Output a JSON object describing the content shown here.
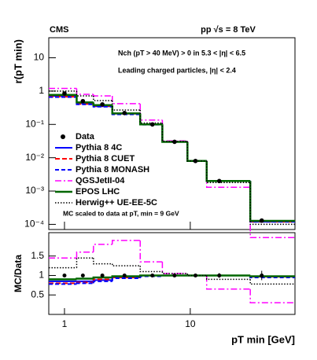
{
  "chart_data": {
    "type": "step",
    "experiment": "CMS",
    "energy": "pp √s = 8 TeV",
    "selection": "Nch (pT > 40 MeV) > 0 in 5.3 < |η| < 6.5",
    "particles": "Leading charged particles, |η| < 2.4",
    "note": "MC scaled to data at pT, min = 9 GeV",
    "xlabel": "pT min [GeV]",
    "xlim": [
      0.75,
      68
    ],
    "xticks": [
      1,
      10
    ],
    "log_x": true,
    "edges": [
      0.75,
      1.25,
      1.7,
      2.4,
      4,
      6,
      9.5,
      13.5,
      30,
      68
    ],
    "top": {
      "ylabel": "r(pT min)",
      "ylim": [
        7e-05,
        40
      ],
      "log_y": true,
      "yticks": [
        {
          "value": 0.0001,
          "label": "10⁻⁴"
        },
        {
          "value": 0.001,
          "label": "10⁻³"
        },
        {
          "value": 0.01,
          "label": "10⁻²"
        },
        {
          "value": 0.1,
          "label": "10⁻¹"
        },
        1,
        10
      ]
    },
    "ratio": {
      "ylabel": "MC/Data",
      "ylim": [
        0,
        2.1
      ],
      "yticks": [
        0.5,
        1,
        1.5
      ]
    },
    "data": {
      "name": "Data",
      "color": "#000000",
      "x": [
        1,
        1.4,
        2,
        3,
        5,
        7.5,
        11,
        17,
        37
      ],
      "values": [
        0.85,
        0.5,
        0.4,
        0.22,
        0.1,
        0.03,
        0.008,
        0.002,
        0.00013
      ],
      "ratio": [
        1,
        1,
        1,
        1,
        1,
        1,
        1,
        1,
        1
      ],
      "ratio_errors": [
        0.04,
        0.04,
        0.04,
        0.04,
        0.04,
        0.04,
        0.04,
        0.06,
        0.12
      ]
    },
    "series": [
      {
        "name": "Pythia 8 4C",
        "color": "#0000ff",
        "dash": "",
        "width": 2,
        "values": [
          0.72,
          0.43,
          0.35,
          0.21,
          0.1,
          0.03,
          0.008,
          0.002,
          0.00012
        ],
        "ratio": [
          0.85,
          0.85,
          0.88,
          0.95,
          1,
          1,
          1,
          1,
          0.97
        ]
      },
      {
        "name": "Pythia 8 CUET",
        "color": "#ff0000",
        "dash": "6,3",
        "width": 2,
        "values": [
          0.68,
          0.41,
          0.36,
          0.21,
          0.1,
          0.03,
          0.008,
          0.002,
          0.00012
        ],
        "ratio": [
          0.8,
          0.82,
          0.9,
          0.95,
          1,
          1,
          1,
          1,
          0.97
        ]
      },
      {
        "name": "Pythia 8 MONASH",
        "color": "#0000ff",
        "dash": "5,3",
        "width": 2,
        "values": [
          0.66,
          0.4,
          0.34,
          0.2,
          0.098,
          0.03,
          0.008,
          0.002,
          0.00012
        ],
        "ratio": [
          0.78,
          0.8,
          0.85,
          0.93,
          0.98,
          1,
          1,
          1,
          0.95
        ]
      },
      {
        "name": "QGSJetII-04",
        "color": "#ff00ff",
        "dash": "8,3,2,3",
        "width": 1.5,
        "values": [
          1.2,
          0.8,
          0.72,
          0.42,
          0.135,
          0.032,
          0.008,
          0.0013,
          4e-05
        ],
        "ratio": [
          1.45,
          1.6,
          1.8,
          1.9,
          1.35,
          1.05,
          1,
          0.65,
          0.3
        ]
      },
      {
        "name": "EPOS LHC",
        "color": "#006600",
        "dash": "",
        "width": 2.5,
        "values": [
          0.77,
          0.46,
          0.38,
          0.215,
          0.1,
          0.03,
          0.008,
          0.002,
          0.000127
        ],
        "ratio": [
          0.9,
          0.92,
          0.95,
          0.98,
          1,
          1,
          1,
          1,
          0.98
        ]
      },
      {
        "name": "Herwig++ UE-EE-5C",
        "color": "#000000",
        "dash": "1.5,2",
        "width": 1.5,
        "values": [
          1.0,
          0.72,
          0.52,
          0.27,
          0.11,
          0.031,
          0.008,
          0.0018,
          0.0001
        ],
        "ratio": [
          1.2,
          1.45,
          1.3,
          1.25,
          1.1,
          1.05,
          1,
          0.9,
          0.78
        ]
      }
    ]
  }
}
